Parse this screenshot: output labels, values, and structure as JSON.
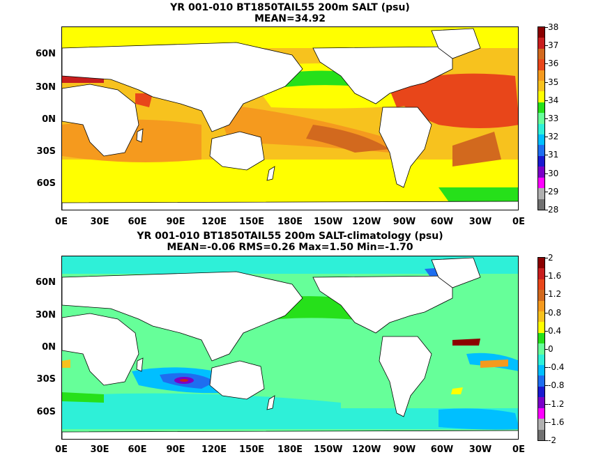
{
  "top": {
    "title_line1": "YR 001-010 BT1850TAIL55 200m SALT (psu)",
    "title_line2": "MEAN=34.92",
    "colorbar_labels": [
      "38",
      "37",
      "36",
      "35",
      "34",
      "33",
      "32",
      "31",
      "30",
      "29",
      "28"
    ],
    "colorbar_colors": [
      "#8b0000",
      "#c81e1e",
      "#d2691e",
      "#e8461a",
      "#f59a1e",
      "#f7c21e",
      "#ffff00",
      "#26e01a",
      "#66ff99",
      "#2ef0d8",
      "#00bfff",
      "#1e6ef0",
      "#1a1ad0",
      "#7a00c8",
      "#ff00ff",
      "#b0b0b0",
      "#707070"
    ]
  },
  "bottom": {
    "title_line1": "YR 001-010 BT1850TAIL55 200m SALT-climatology (psu)",
    "title_line2": "MEAN=-0.06   RMS=0.26   Max=1.50   Min=-1.70",
    "colorbar_labels": [
      "2",
      "1.6",
      "1.2",
      "0.8",
      "0.4",
      "0",
      "-0.4",
      "-0.8",
      "-1.2",
      "-1.6",
      "-2"
    ],
    "colorbar_colors": [
      "#8b0000",
      "#c81e1e",
      "#e8461a",
      "#d2691e",
      "#f59a1e",
      "#f7c21e",
      "#ffff00",
      "#26e01a",
      "#66ff99",
      "#2ef0d8",
      "#00bfff",
      "#1e6ef0",
      "#1a1ad0",
      "#7a00c8",
      "#ff00ff",
      "#b0b0b0",
      "#707070"
    ]
  },
  "lat_labels": [
    "60N",
    "30N",
    "0N",
    "30S",
    "60S"
  ],
  "lon_labels": [
    "0E",
    "30E",
    "60E",
    "90E",
    "120E",
    "150E",
    "180E",
    "150W",
    "120W",
    "90W",
    "60W",
    "30W",
    "0E"
  ]
}
